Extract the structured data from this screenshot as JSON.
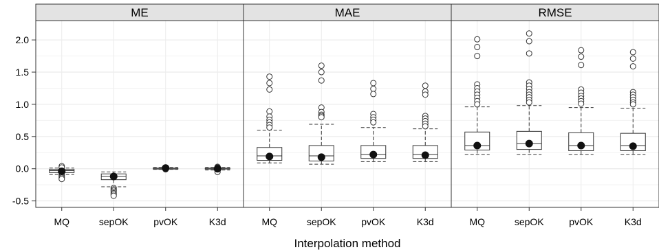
{
  "chart_data": {
    "type": "boxplot",
    "xlabel": "Interpolation method",
    "ylabel": "",
    "ylim": [
      -0.6,
      2.3
    ],
    "yticks": [
      -0.5,
      0.0,
      0.5,
      1.0,
      1.5,
      2.0
    ],
    "ytick_labels": [
      "-0.5",
      "0.0",
      "0.5",
      "1.0",
      "1.5",
      "2.0"
    ],
    "categories": [
      "MQ",
      "sepOK",
      "pvOK",
      "K3d"
    ],
    "grid": true,
    "panels": [
      {
        "title": "ME",
        "boxes": [
          {
            "category": "MQ",
            "whisker_low": -0.09,
            "q1": -0.06,
            "median": -0.03,
            "q3": -0.01,
            "whisker_high": 0.01,
            "mean": -0.04,
            "outliers": [
              0.04,
              0.02,
              -0.1,
              -0.12,
              -0.14,
              -0.16
            ]
          },
          {
            "category": "sepOK",
            "whisker_low": -0.28,
            "q1": -0.17,
            "median": -0.12,
            "q3": -0.08,
            "whisker_high": -0.05,
            "mean": -0.12,
            "outliers": [
              -0.3,
              -0.32,
              -0.34,
              -0.36,
              -0.38,
              -0.4,
              -0.42
            ]
          },
          {
            "category": "pvOK",
            "whisker_low": -0.01,
            "q1": 0.0,
            "median": 0.005,
            "q3": 0.01,
            "whisker_high": 0.02,
            "mean": 0.01,
            "outliers": [
              0.02,
              0.01,
              -0.01
            ]
          },
          {
            "category": "K3d",
            "whisker_low": -0.02,
            "q1": 0.0,
            "median": 0.005,
            "q3": 0.01,
            "whisker_high": 0.02,
            "mean": 0.0,
            "outliers": [
              0.03,
              0.02,
              -0.03,
              -0.05
            ]
          }
        ]
      },
      {
        "title": "MAE",
        "boxes": [
          {
            "category": "MQ",
            "whisker_low": 0.09,
            "q1": 0.13,
            "median": 0.2,
            "q3": 0.33,
            "whisker_high": 0.6,
            "mean": 0.19,
            "outliers": [
              1.43,
              1.33,
              1.23,
              0.89,
              0.81,
              0.76,
              0.72,
              0.68,
              0.64
            ]
          },
          {
            "category": "sepOK",
            "whisker_low": 0.07,
            "q1": 0.12,
            "median": 0.2,
            "q3": 0.36,
            "whisker_high": 0.69,
            "mean": 0.18,
            "outliers": [
              1.6,
              1.5,
              1.37,
              0.95,
              0.88,
              0.84,
              0.82,
              0.8
            ]
          },
          {
            "category": "pvOK",
            "whisker_low": 0.11,
            "q1": 0.16,
            "median": 0.22,
            "q3": 0.36,
            "whisker_high": 0.64,
            "mean": 0.22,
            "outliers": [
              1.33,
              1.24,
              1.16,
              0.85,
              0.8,
              0.76,
              0.72
            ]
          },
          {
            "category": "K3d",
            "whisker_low": 0.11,
            "q1": 0.16,
            "median": 0.22,
            "q3": 0.36,
            "whisker_high": 0.62,
            "mean": 0.21,
            "outliers": [
              1.29,
              1.2,
              1.15,
              0.82,
              0.78,
              0.74,
              0.7,
              0.66
            ]
          }
        ]
      },
      {
        "title": "RMSE",
        "boxes": [
          {
            "category": "MQ",
            "whisker_low": 0.22,
            "q1": 0.29,
            "median": 0.36,
            "q3": 0.57,
            "whisker_high": 0.96,
            "mean": 0.36,
            "outliers": [
              2.01,
              1.89,
              1.75,
              1.31,
              1.25,
              1.2,
              1.15,
              1.1,
              1.05,
              1.0
            ]
          },
          {
            "category": "sepOK",
            "whisker_low": 0.22,
            "q1": 0.3,
            "median": 0.39,
            "q3": 0.58,
            "whisker_high": 0.98,
            "mean": 0.39,
            "outliers": [
              2.1,
              1.98,
              1.79,
              1.34,
              1.29,
              1.24,
              1.19,
              1.15,
              1.11,
              1.07,
              1.03
            ]
          },
          {
            "category": "pvOK",
            "whisker_low": 0.22,
            "q1": 0.28,
            "median": 0.36,
            "q3": 0.56,
            "whisker_high": 0.95,
            "mean": 0.36,
            "outliers": [
              1.84,
              1.74,
              1.61,
              1.23,
              1.18,
              1.13,
              1.09,
              1.05,
              1.01
            ]
          },
          {
            "category": "K3d",
            "whisker_low": 0.22,
            "q1": 0.28,
            "median": 0.36,
            "q3": 0.55,
            "whisker_high": 0.94,
            "mean": 0.35,
            "outliers": [
              1.81,
              1.71,
              1.59,
              1.19,
              1.15,
              1.11,
              1.07,
              1.03,
              1.0
            ]
          }
        ]
      }
    ]
  }
}
